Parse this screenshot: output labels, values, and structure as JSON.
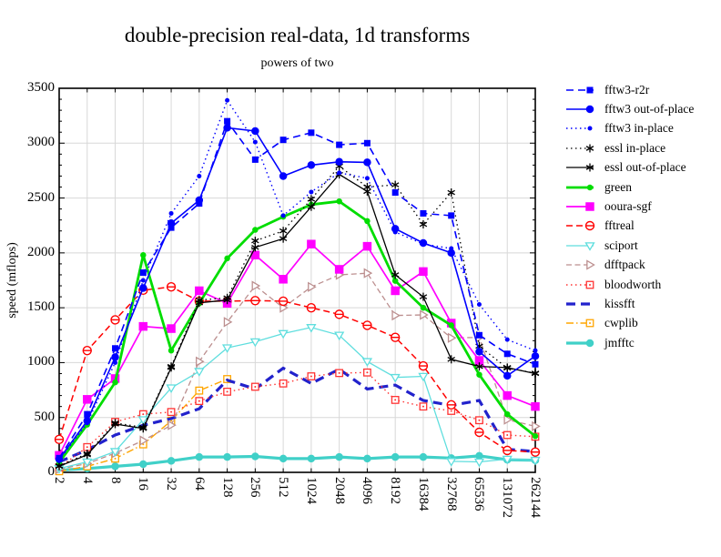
{
  "chart_data": {
    "type": "line",
    "title": "double-precision real-data, 1d transforms",
    "subtitle": "powers of two",
    "ylabel": "speed (mflops)",
    "ylim": [
      0,
      3500
    ],
    "ytick_step": 500,
    "ytick_minor_step": 100,
    "grid": true,
    "legend_position": "right",
    "categories": [
      "2",
      "4",
      "8",
      "16",
      "32",
      "64",
      "128",
      "256",
      "512",
      "1024",
      "2048",
      "4096",
      "8192",
      "16384",
      "32768",
      "65536",
      "131072",
      "262144"
    ],
    "series": [
      {
        "name": "fftw3-r2r",
        "color": "#0000ff",
        "dash": "8,5",
        "width": 1.6,
        "marker": "square",
        "msize": 7,
        "values": [
          130,
          530,
          1130,
          1820,
          2230,
          2450,
          3200,
          2850,
          3030,
          3095,
          2985,
          3000,
          2550,
          2360,
          2340,
          1250,
          1080,
          985
        ]
      },
      {
        "name": "fftw3 out-of-place",
        "color": "#0000ff",
        "dash": "",
        "width": 1.6,
        "marker": "circle",
        "msize": 8.5,
        "values": [
          120,
          470,
          1050,
          1680,
          2270,
          2480,
          3140,
          3110,
          2700,
          2800,
          2830,
          2825,
          2220,
          2090,
          2000,
          1100,
          880,
          1060
        ]
      },
      {
        "name": "fftw3 in-place",
        "color": "#0000ff",
        "dash": "1.5,3.5",
        "width": 1.4,
        "marker": "dot",
        "msize": 5,
        "values": [
          110,
          450,
          1000,
          1750,
          2360,
          2700,
          3390,
          3010,
          2340,
          2555,
          2730,
          2680,
          2190,
          2080,
          2040,
          1530,
          1210,
          1110
        ]
      },
      {
        "name": "essl in-place",
        "color": "#000000",
        "dash": "1.5,3.5",
        "width": 1.3,
        "marker": "asterisk",
        "msize": 9,
        "values": [
          60,
          170,
          450,
          410,
          965,
          1570,
          1590,
          2110,
          2200,
          2490,
          2790,
          2600,
          2620,
          2260,
          2550,
          1150,
          950,
          905
        ]
      },
      {
        "name": "essl out-of-place",
        "color": "#000000",
        "dash": "",
        "width": 1.3,
        "marker": "asterisk",
        "msize": 9,
        "values": [
          55,
          160,
          440,
          400,
          955,
          1545,
          1570,
          2050,
          2130,
          2420,
          2715,
          2560,
          1800,
          1600,
          1030,
          965,
          955,
          900
        ]
      },
      {
        "name": "green",
        "color": "#00dd00",
        "dash": "",
        "width": 2.8,
        "marker": "dot",
        "msize": 6.5,
        "values": [
          90,
          435,
          820,
          1980,
          1110,
          1540,
          1950,
          2210,
          2330,
          2440,
          2470,
          2290,
          1745,
          1500,
          1340,
          890,
          530,
          330
        ]
      },
      {
        "name": "ooura-sgf",
        "color": "#ff00ff",
        "dash": "",
        "width": 1.7,
        "marker": "square",
        "msize": 9.5,
        "values": [
          155,
          665,
          855,
          1330,
          1310,
          1655,
          1540,
          1980,
          1760,
          2080,
          1850,
          2060,
          1655,
          1830,
          1360,
          1020,
          700,
          600
        ]
      },
      {
        "name": "fftreal",
        "color": "#ff0000",
        "dash": "7,4",
        "width": 1.5,
        "marker": "circle-dash",
        "msize": 9,
        "values": [
          300,
          1110,
          1390,
          1660,
          1690,
          1560,
          1560,
          1565,
          1560,
          1500,
          1440,
          1340,
          1230,
          970,
          615,
          365,
          200,
          185
        ]
      },
      {
        "name": "sciport",
        "color": "#5fdede",
        "dash": "",
        "width": 1.3,
        "marker": "tri-down",
        "msize": 9,
        "values": [
          35,
          95,
          190,
          480,
          770,
          920,
          1135,
          1190,
          1265,
          1320,
          1250,
          1010,
          865,
          875,
          100,
          95,
          120,
          110
        ]
      },
      {
        "name": "dfftpack",
        "color": "#bc8f8f",
        "dash": "6,3.5",
        "width": 1.3,
        "marker": "tri-right",
        "msize": 9,
        "values": [
          30,
          80,
          175,
          290,
          430,
          1010,
          1370,
          1700,
          1500,
          1690,
          1800,
          1815,
          1430,
          1435,
          1225,
          1230,
          480,
          420
        ]
      },
      {
        "name": "bloodworth",
        "color": "#ff3333",
        "dash": "1.5,3.5",
        "width": 1.4,
        "marker": "square-dot",
        "msize": 7.5,
        "values": [
          45,
          230,
          460,
          530,
          550,
          650,
          735,
          780,
          810,
          875,
          905,
          910,
          660,
          600,
          560,
          475,
          340,
          325
        ]
      },
      {
        "name": "kissfft",
        "color": "#2222cc",
        "dash": "10,6",
        "width": 3.2,
        "marker": "none",
        "msize": 0,
        "values": [
          95,
          205,
          340,
          430,
          490,
          580,
          840,
          760,
          950,
          810,
          940,
          760,
          795,
          655,
          610,
          655,
          210,
          190
        ]
      },
      {
        "name": "cwplib",
        "color": "#ffa500",
        "dash": "8,3,1.5,3",
        "width": 1.4,
        "marker": "square-dot",
        "msize": 7.5,
        "values": [
          10,
          55,
          125,
          255,
          470,
          745,
          850,
          null,
          null,
          null,
          null,
          null,
          null,
          null,
          null,
          null,
          null,
          null
        ]
      },
      {
        "name": "jmfftc",
        "color": "#40d0c8",
        "dash": "",
        "width": 3.2,
        "marker": "circle",
        "msize": 8.5,
        "values": [
          20,
          35,
          55,
          75,
          105,
          140,
          140,
          145,
          125,
          125,
          140,
          125,
          140,
          140,
          130,
          150,
          115,
          110
        ]
      }
    ]
  }
}
